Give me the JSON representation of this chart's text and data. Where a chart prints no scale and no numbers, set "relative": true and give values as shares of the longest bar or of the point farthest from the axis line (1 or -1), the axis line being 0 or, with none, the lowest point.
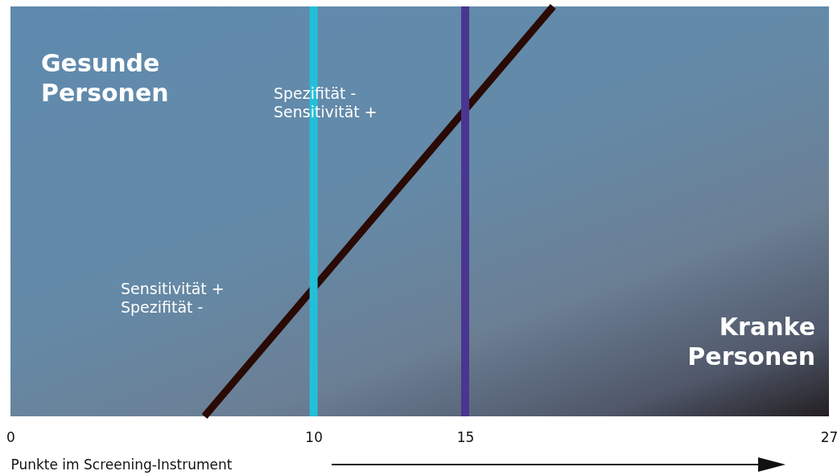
{
  "chart_data": {
    "type": "line",
    "relative": true,
    "xlabel": "Punkte im Screening-Instrument",
    "xlim": [
      0,
      27
    ],
    "xticks": [
      0,
      10,
      15,
      27
    ],
    "grid": false,
    "marker": "none",
    "line_style": "solid",
    "series": [
      {
        "color": "#2a0a05",
        "x": [
          6.4,
          17.9
        ],
        "values": [
          0,
          1
        ]
      }
    ],
    "ref_lines": [
      {
        "axis": "x",
        "value": 10,
        "color": "#22c0d8"
      },
      {
        "axis": "x",
        "value": 15,
        "color": "#4a3590"
      }
    ],
    "annotations": [
      "Gesunde\nPersonen",
      "Spezifität -\nSensitivität +",
      "Sensitivität +\nSpezifität -",
      "Kranke\nPersonen"
    ]
  }
}
